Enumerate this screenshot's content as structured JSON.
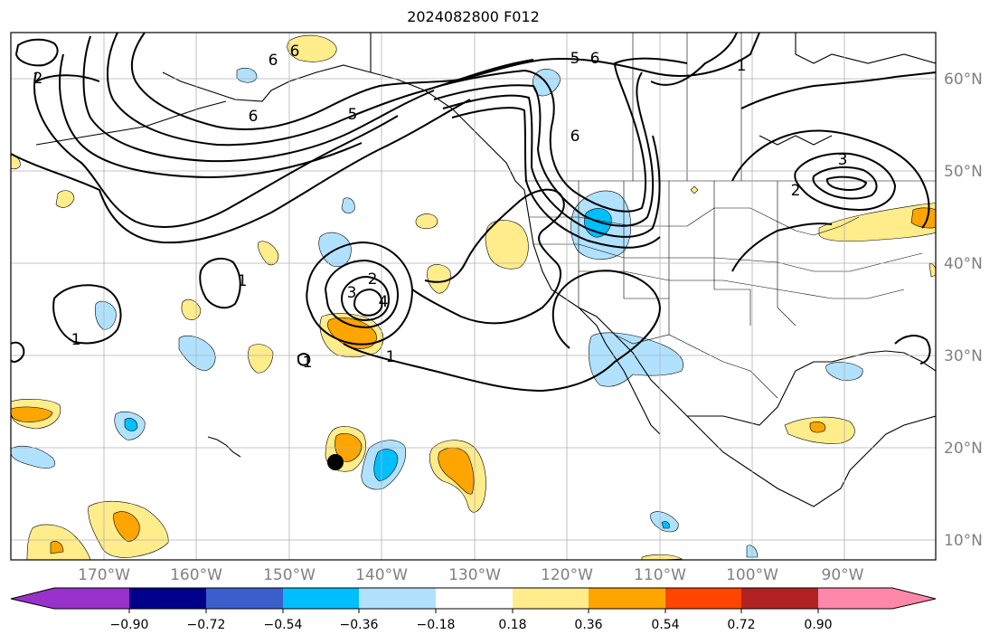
{
  "title": "2024082800 F012",
  "longitude_labels": [
    "170°W",
    "160°W",
    "150°W",
    "140°W",
    "130°W",
    "120°W",
    "110°W",
    "100°W",
    "90°W"
  ],
  "latitude_labels": [
    "60°N",
    "50°N",
    "40°N",
    "30°N",
    "20°N",
    "10°N"
  ],
  "colorbar": {
    "colors": [
      "#9932cc",
      "#00008b",
      "#3a5fcd",
      "#00bfff",
      "#b0e2ff",
      "#ffffff",
      "#ffec8b",
      "#ffa500",
      "#ff4500",
      "#b22222",
      "#ff88aa"
    ],
    "tick_labels": [
      "−0.90",
      "−0.72",
      "−0.54",
      "−0.36",
      "−0.18",
      "0.18",
      "0.36",
      "0.54",
      "0.72",
      "0.90"
    ]
  },
  "contour_labels": [
    {
      "text": "2"
    },
    {
      "text": "6"
    },
    {
      "text": "6"
    },
    {
      "text": "6"
    },
    {
      "text": "5"
    },
    {
      "text": "5"
    },
    {
      "text": "6"
    },
    {
      "text": "1"
    },
    {
      "text": "6"
    },
    {
      "text": "3"
    },
    {
      "text": "2"
    },
    {
      "text": "1"
    },
    {
      "text": "2"
    },
    {
      "text": "3"
    },
    {
      "text": "4"
    },
    {
      "text": "1"
    },
    {
      "text": "1"
    },
    {
      "text": "1"
    }
  ]
}
